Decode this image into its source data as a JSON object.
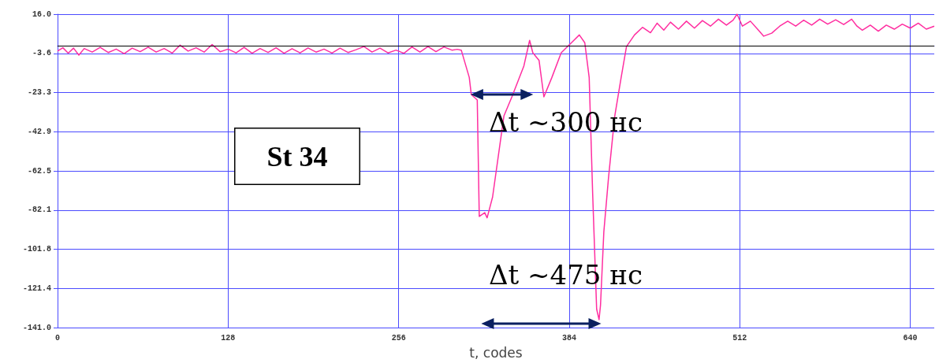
{
  "chart_data": {
    "type": "line",
    "xlabel": "t, codes",
    "annotations": [
      "St 34",
      "Δt ~300 нс",
      "Δt ~475 нс"
    ],
    "x": [
      0,
      4,
      8,
      12,
      16,
      20,
      26,
      32,
      38,
      44,
      50,
      56,
      62,
      68,
      74,
      80,
      86,
      92,
      98,
      104,
      110,
      116,
      122,
      128,
      134,
      140,
      146,
      152,
      158,
      164,
      170,
      176,
      182,
      188,
      194,
      200,
      206,
      212,
      218,
      224,
      230,
      236,
      242,
      248,
      254,
      260,
      266,
      272,
      278,
      284,
      290,
      296,
      300,
      303,
      309,
      310.5,
      315,
      316.5,
      320.6,
      322.4,
      326.5,
      335,
      341,
      350,
      354.3,
      356.7,
      361.4,
      365,
      371,
      378,
      385.7,
      391.6,
      395.7,
      399,
      401.6,
      404.6,
      406.4,
      407.5,
      410,
      413.5,
      418.2,
      423,
      427,
      433,
      439,
      445,
      450,
      455,
      460,
      466,
      472,
      478,
      484,
      490,
      496,
      502,
      507,
      510,
      514,
      520,
      526,
      530,
      536,
      542,
      548,
      554,
      560,
      566,
      572,
      578,
      584,
      590,
      596,
      600,
      604,
      610,
      616,
      622,
      628,
      634,
      640,
      646,
      652,
      658
    ],
    "series": [
      {
        "color": "#ff2ea0",
        "values": [
          -2.5,
          -0.8,
          -3.5,
          -1,
          -4.5,
          -1.2,
          -3,
          -0.6,
          -3.2,
          -1.5,
          -3.8,
          -1,
          -2.8,
          -0.5,
          -3,
          -1.2,
          -3.5,
          0.5,
          -2.5,
          -0.8,
          -3,
          0.8,
          -2.8,
          -1.5,
          -3.4,
          -0.6,
          -3.6,
          -1.2,
          -3.2,
          -0.8,
          -3.6,
          -1.3,
          -3.4,
          -0.9,
          -3,
          -1.5,
          -3.5,
          -1,
          -3.2,
          -1.8,
          -0.2,
          -3,
          -1,
          -3.4,
          -2,
          -3.6,
          -0.4,
          -3,
          -0.2,
          -2.8,
          -0.4,
          -2,
          -1.6,
          -2,
          -15.7,
          -24.2,
          -27,
          -85.3,
          -83.4,
          -86,
          -75.6,
          -35,
          -25.4,
          -9.9,
          2.9,
          -3.3,
          -7.2,
          -25.4,
          -15.7,
          -3.3,
          1.7,
          5.6,
          1.7,
          -15.7,
          -73.7,
          -131.7,
          -137,
          -129.8,
          -93,
          -66,
          -35,
          -15.7,
          -0.2,
          5.6,
          9.4,
          6.7,
          11.5,
          8,
          12,
          8.5,
          12.5,
          9,
          12.8,
          10,
          13.5,
          10.5,
          13,
          16,
          10,
          12.5,
          8,
          5,
          6.5,
          10,
          12.5,
          10,
          13,
          10.5,
          13.5,
          11,
          13.2,
          10.8,
          13.5,
          10,
          8,
          10.5,
          7.5,
          10.5,
          8.5,
          11,
          9,
          11.5,
          8.5,
          10
        ]
      }
    ],
    "xlim": [
      0,
      658
    ],
    "xticks": [
      0,
      128,
      256,
      384,
      512,
      640
    ],
    "ylim": [
      -141,
      16
    ],
    "yticks": [
      {
        "value": 16,
        "label": "16.0"
      },
      {
        "value": -3.625,
        "label": "-3.6"
      },
      {
        "value": -23.25,
        "label": "-23.3"
      },
      {
        "value": -42.875,
        "label": "-42.9"
      },
      {
        "value": -62.5,
        "label": "-62.5"
      },
      {
        "value": -82.125,
        "label": "-82.1"
      },
      {
        "value": -101.75,
        "label": "-101.8"
      },
      {
        "value": -121.375,
        "label": "-121.4"
      },
      {
        "value": -141,
        "label": "-141.0"
      }
    ],
    "ref_lines": [
      {
        "axis": "y",
        "value": 0,
        "color": "#000000"
      }
    ],
    "grid": true,
    "marker": "none",
    "line_style": "solid"
  }
}
